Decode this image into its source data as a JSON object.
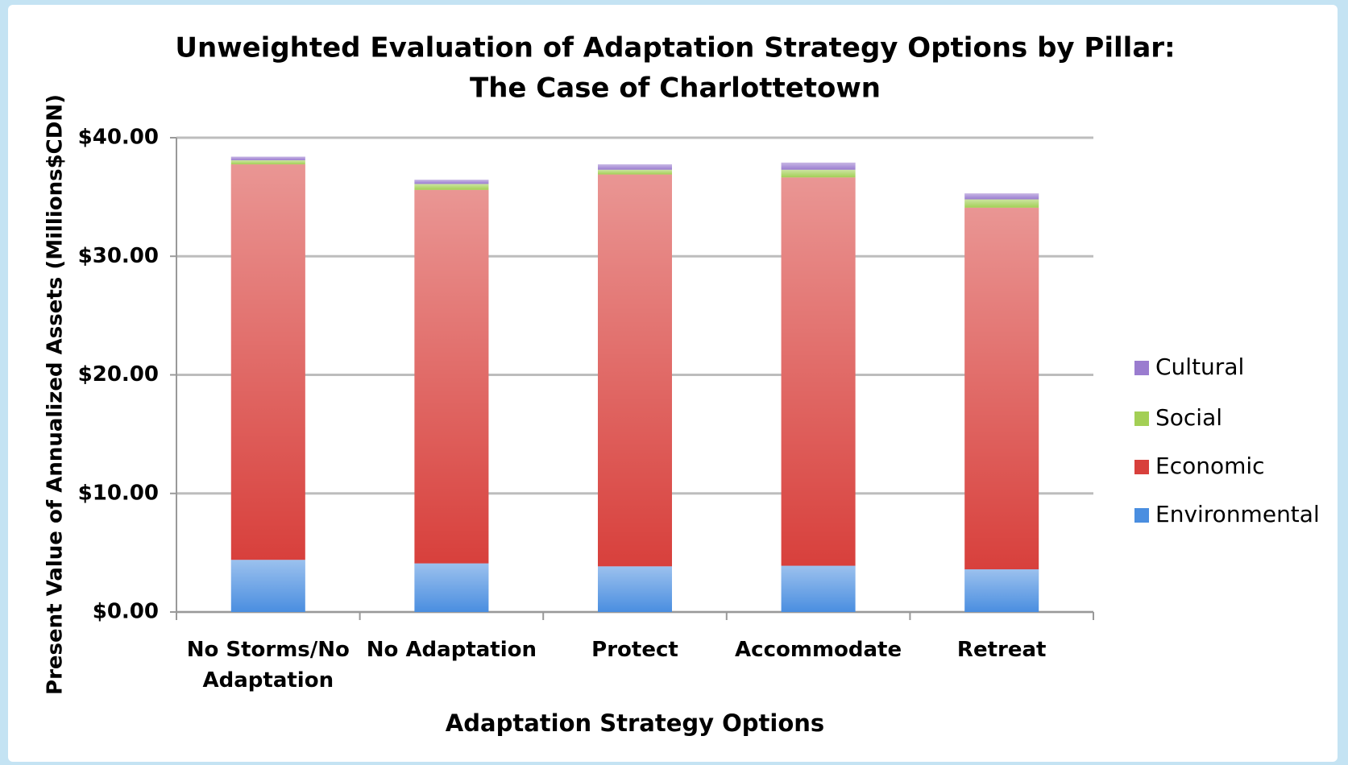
{
  "chart_data": {
    "type": "stacked_bar",
    "title": "Unweighted Evaluation of Adaptation Strategy Options by Pillar:",
    "subtitle": "The Case of Charlottetown",
    "x_label": "Adaptation Strategy Options",
    "y_label": "Present Value of Annualized Assets (Millions$CDN)",
    "categories": [
      "No Storms/No Adaptation",
      "No Adaptation",
      "Protect",
      "Accommodate",
      "Retreat"
    ],
    "series": [
      {
        "name": "Environmental",
        "color": "#4a8ee0",
        "values": [
          4.4,
          4.1,
          3.85,
          3.9,
          3.6
        ]
      },
      {
        "name": "Economic",
        "color": "#d8403c",
        "values": [
          33.35,
          31.5,
          33.05,
          32.75,
          30.5
        ]
      },
      {
        "name": "Social",
        "color": "#a3cf55",
        "values": [
          0.35,
          0.5,
          0.4,
          0.65,
          0.7
        ]
      },
      {
        "name": "Cultural",
        "color": "#9a7ccf",
        "values": [
          0.3,
          0.35,
          0.45,
          0.6,
          0.5
        ]
      }
    ],
    "ylim": [
      0,
      40
    ],
    "yticks": [
      {
        "value": 0,
        "label": "$0.00"
      },
      {
        "value": 10,
        "label": "$10.00"
      },
      {
        "value": 20,
        "label": "$20.00"
      },
      {
        "value": 30,
        "label": "$30.00"
      },
      {
        "value": 40,
        "label": "$40.00"
      }
    ],
    "grid": true,
    "legend": "right"
  }
}
